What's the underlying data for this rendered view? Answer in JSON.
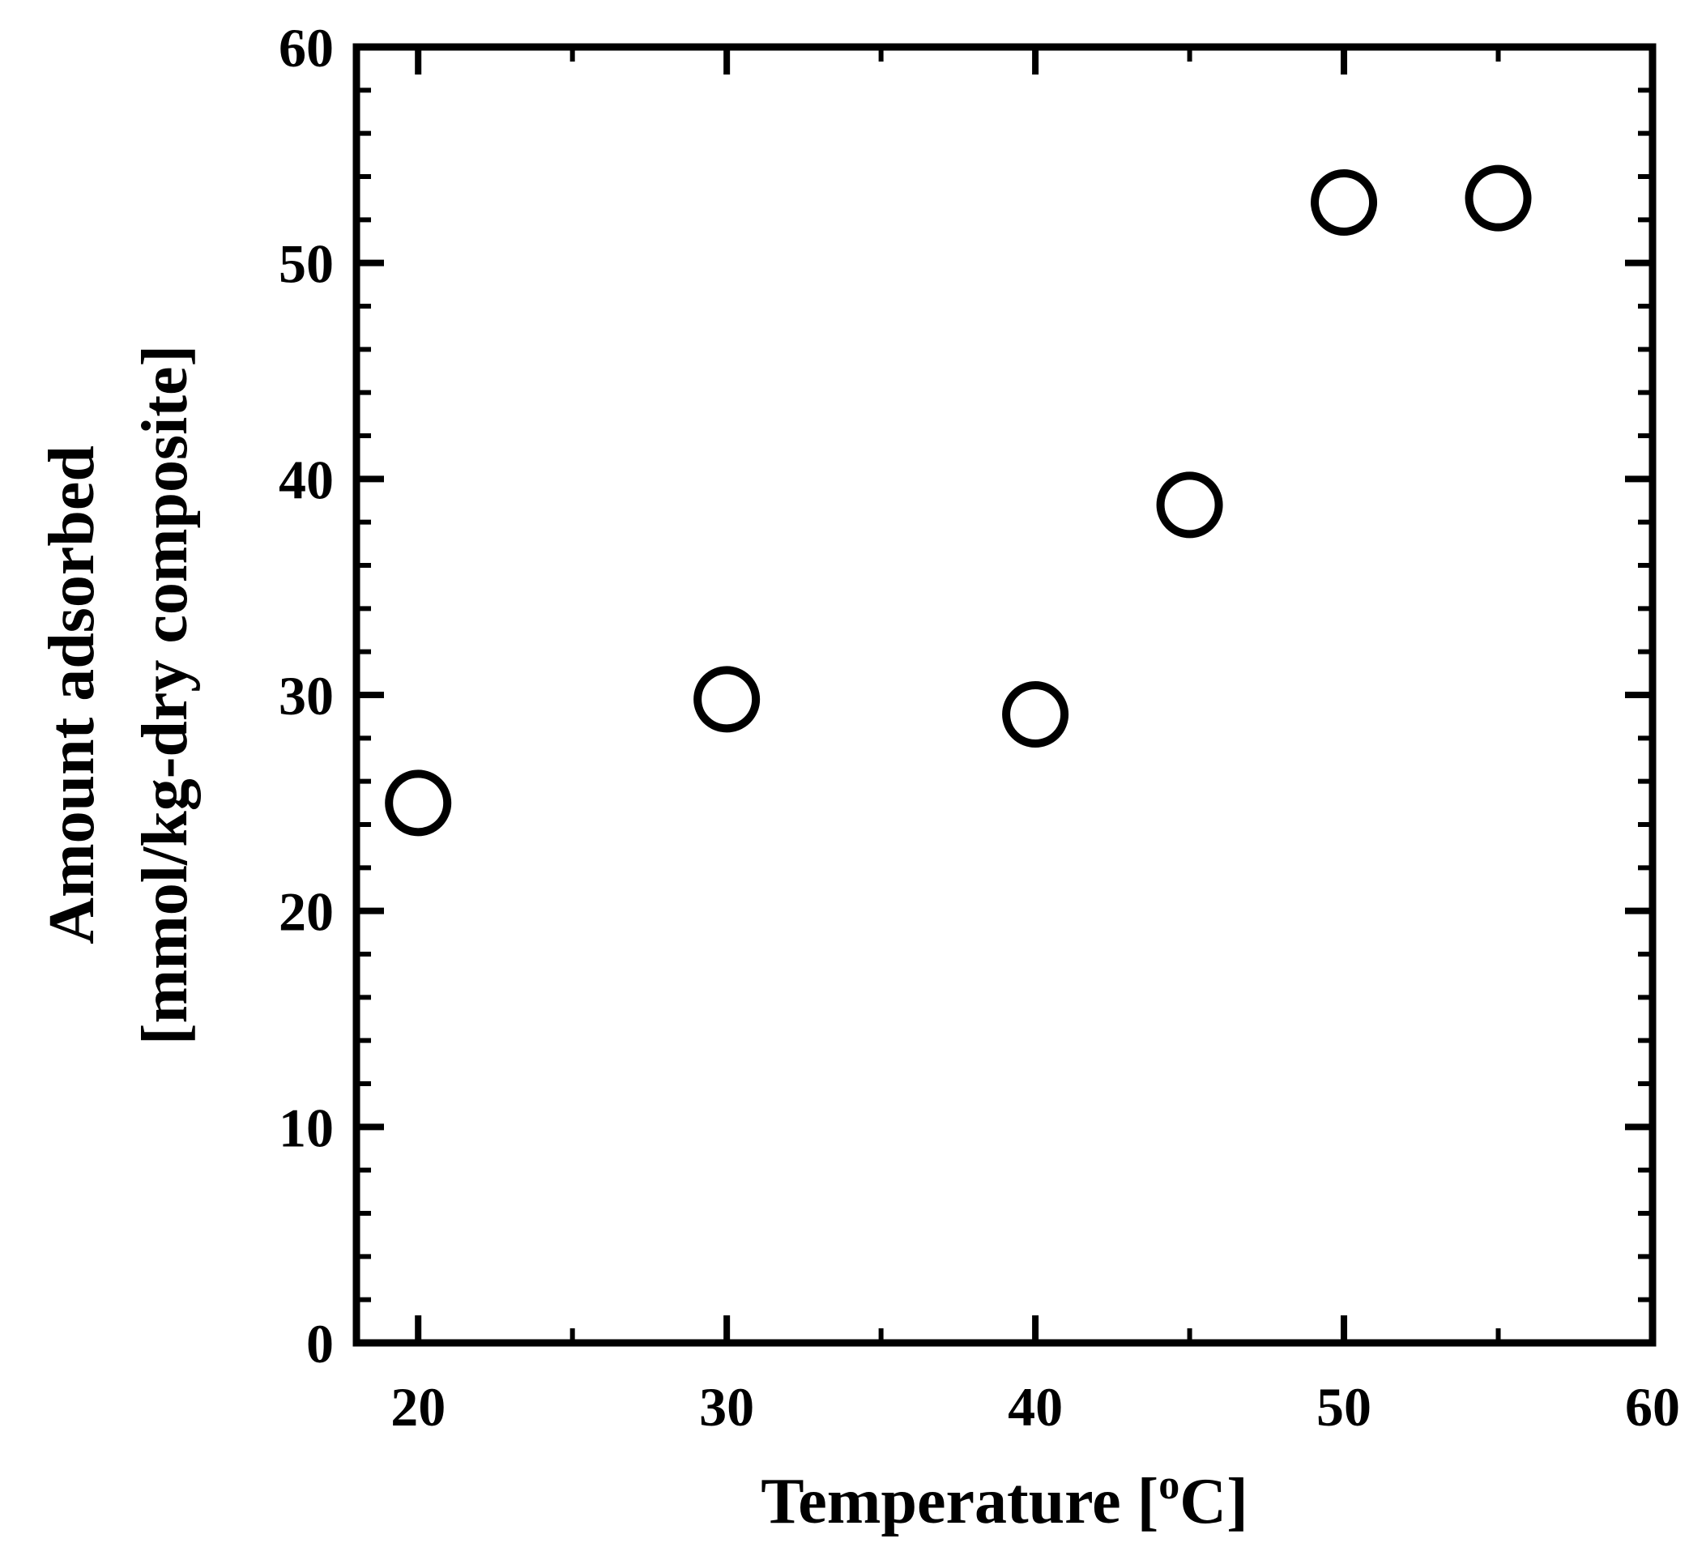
{
  "chart_data": {
    "type": "scatter",
    "xlabel": "Temperature [",
    "xlabel_sup": "o",
    "xlabel_end": "C]",
    "ylabel_line1": "Amount adsorbed",
    "ylabel_line2": "[mmol/kg-dry composite]",
    "xlim": [
      18,
      60
    ],
    "ylim": [
      0,
      60
    ],
    "x_ticks": [
      20,
      30,
      40,
      50,
      60
    ],
    "y_ticks": [
      0,
      10,
      20,
      30,
      40,
      50,
      60
    ],
    "marker": "open-circle",
    "color": "#000000",
    "series": [
      {
        "x": [
          20,
          30,
          40,
          45,
          50,
          55
        ],
        "y": [
          25.0,
          29.8,
          29.1,
          38.8,
          52.8,
          53.0
        ]
      }
    ]
  }
}
